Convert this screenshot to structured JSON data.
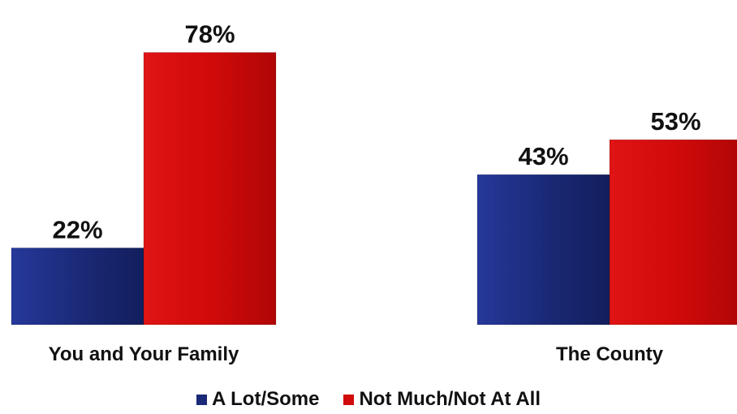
{
  "chart_data": {
    "type": "bar",
    "title": "",
    "xlabel": "",
    "ylabel": "",
    "categories": [
      "You and Your Family",
      "The County"
    ],
    "series": [
      {
        "name": "A Lot/Some",
        "values": [
          22,
          43
        ],
        "labels": [
          "22%",
          "43%"
        ],
        "color": "#1b2a78"
      },
      {
        "name": "Not Much/Not At All",
        "values": [
          78,
          53
        ],
        "labels": [
          "78%",
          "53%"
        ],
        "color": "#d10a0a"
      }
    ],
    "ylim": [
      0,
      100
    ],
    "grid": false,
    "legend_position": "bottom"
  }
}
